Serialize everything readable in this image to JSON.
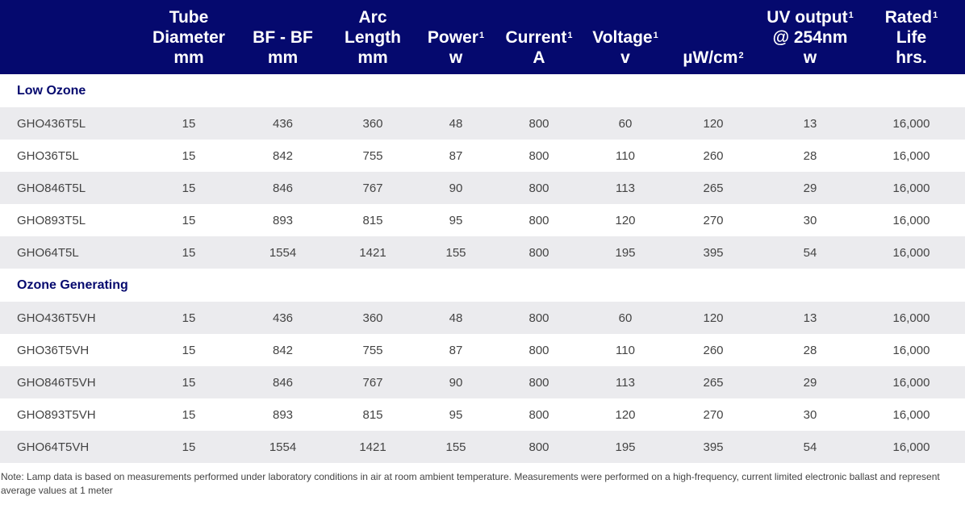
{
  "headers": [
    {
      "lines": [
        ""
      ],
      "sup": ""
    },
    {
      "lines": [
        "Tube",
        "Diameter",
        "mm"
      ],
      "sup": ""
    },
    {
      "lines": [
        "BF - BF",
        "mm"
      ],
      "sup": ""
    },
    {
      "lines": [
        "Arc",
        "Length",
        "mm"
      ],
      "sup": ""
    },
    {
      "lines": [
        "Power",
        "w"
      ],
      "sup": "1"
    },
    {
      "lines": [
        "Current",
        "A"
      ],
      "sup": "1"
    },
    {
      "lines": [
        "Voltage",
        "v"
      ],
      "sup": "1"
    },
    {
      "lines": [
        "µW/cm"
      ],
      "sup": "2"
    },
    {
      "lines": [
        "UV output",
        "@ 254nm",
        "w"
      ],
      "sup": "1"
    },
    {
      "lines": [
        "Rated",
        "Life",
        "hrs."
      ],
      "sup": "1"
    }
  ],
  "sections": [
    {
      "title": "Low Ozone",
      "rows": [
        [
          "GHO436T5L",
          "15",
          "436",
          "360",
          "48",
          "800",
          "60",
          "120",
          "13",
          "16,000"
        ],
        [
          "GHO36T5L",
          "15",
          "842",
          "755",
          "87",
          "800",
          "110",
          "260",
          "28",
          "16,000"
        ],
        [
          "GHO846T5L",
          "15",
          "846",
          "767",
          "90",
          "800",
          "113",
          "265",
          "29",
          "16,000"
        ],
        [
          "GHO893T5L",
          "15",
          "893",
          "815",
          "95",
          "800",
          "120",
          "270",
          "30",
          "16,000"
        ],
        [
          "GHO64T5L",
          "15",
          "1554",
          "1421",
          "155",
          "800",
          "195",
          "395",
          "54",
          "16,000"
        ]
      ]
    },
    {
      "title": "Ozone Generating",
      "rows": [
        [
          "GHO436T5VH",
          "15",
          "436",
          "360",
          "48",
          "800",
          "60",
          "120",
          "13",
          "16,000"
        ],
        [
          "GHO36T5VH",
          "15",
          "842",
          "755",
          "87",
          "800",
          "110",
          "260",
          "28",
          "16,000"
        ],
        [
          "GHO846T5VH",
          "15",
          "846",
          "767",
          "90",
          "800",
          "113",
          "265",
          "29",
          "16,000"
        ],
        [
          "GHO893T5VH",
          "15",
          "893",
          "815",
          "95",
          "800",
          "120",
          "270",
          "30",
          "16,000"
        ],
        [
          "GHO64T5VH",
          "15",
          "1554",
          "1421",
          "155",
          "800",
          "195",
          "395",
          "54",
          "16,000"
        ]
      ]
    }
  ],
  "note": "Note: Lamp data is based on measurements performed under laboratory conditions in air at room ambient temperature. Measurements were performed on a high-frequency, current limited electronic ballast and represent average values at 1 meter",
  "colors": {
    "header_bg": "#05096e",
    "section_title": "#05096e",
    "stripe": "#ebebee"
  }
}
